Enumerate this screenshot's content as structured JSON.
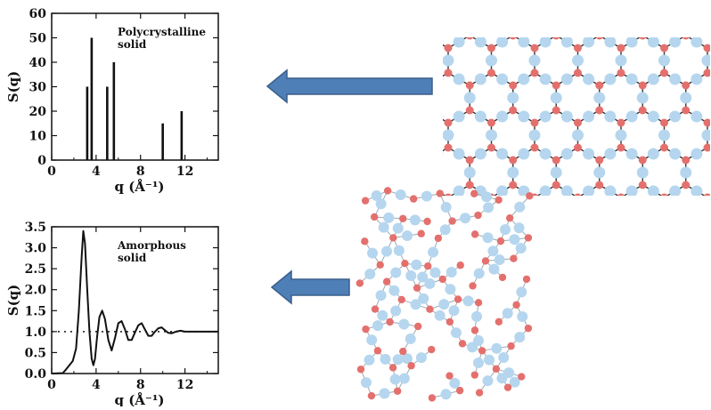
{
  "chart_data": [
    {
      "type": "bar",
      "annotation": [
        "Polycrystalline",
        "solid"
      ],
      "xlabel": "q (Å⁻¹)",
      "ylabel": "S(q)",
      "xlim": [
        0,
        15
      ],
      "ylim": [
        0,
        60
      ],
      "xticks": [
        0,
        4,
        8,
        12
      ],
      "yticks": [
        0,
        10,
        20,
        30,
        40,
        50,
        60
      ],
      "peaks": [
        {
          "q": 3.2,
          "s": 30
        },
        {
          "q": 3.6,
          "s": 50
        },
        {
          "q": 5.0,
          "s": 30
        },
        {
          "q": 5.6,
          "s": 40
        },
        {
          "q": 10.0,
          "s": 15
        },
        {
          "q": 11.7,
          "s": 20
        }
      ]
    },
    {
      "type": "line",
      "annotation": [
        "Amorphous",
        "solid"
      ],
      "xlabel": "q (Å⁻¹)",
      "ylabel": "S(q)",
      "xlim": [
        0,
        15
      ],
      "ylim": [
        0,
        3.5
      ],
      "xticks": [
        0,
        4,
        8,
        12
      ],
      "yticks": [
        0.0,
        0.5,
        1.0,
        1.5,
        2.0,
        2.5,
        3.0,
        3.5
      ],
      "reference_line": 1.0,
      "series": [
        {
          "x": [
            0.0,
            1.0,
            1.3,
            1.6,
            1.9,
            2.2,
            2.45,
            2.7,
            2.85,
            3.0,
            3.2,
            3.4,
            3.6,
            3.75,
            3.9,
            4.1,
            4.3,
            4.55,
            4.8,
            5.1,
            5.4,
            5.7,
            6.0,
            6.3,
            6.6,
            6.9,
            7.2,
            7.5,
            7.8,
            8.1,
            8.4,
            8.7,
            9.0,
            9.3,
            9.6,
            9.9,
            10.2,
            10.5,
            10.8,
            11.2,
            11.6,
            12.0,
            13.0,
            15.0
          ],
          "y": [
            0.0,
            0.01,
            0.1,
            0.2,
            0.3,
            0.6,
            1.5,
            2.8,
            3.4,
            3.1,
            2.0,
            1.0,
            0.35,
            0.2,
            0.35,
            0.9,
            1.35,
            1.5,
            1.3,
            0.8,
            0.55,
            0.85,
            1.2,
            1.25,
            1.05,
            0.8,
            0.8,
            0.98,
            1.15,
            1.2,
            1.05,
            0.9,
            0.9,
            1.0,
            1.08,
            1.1,
            1.03,
            0.97,
            0.96,
            1.0,
            1.02,
            1.0,
            1.0,
            1.0
          ]
        }
      ]
    }
  ],
  "structure_diagrams": [
    "crystalline-lattice",
    "amorphous-network"
  ],
  "colors": {
    "arrow": "#4f7fb7",
    "arrow_edge": "#3a5f8c",
    "atom_large": "#b5d6ee",
    "atom_small": "#e4706d",
    "bond": "#333333",
    "axis": "#111111"
  }
}
